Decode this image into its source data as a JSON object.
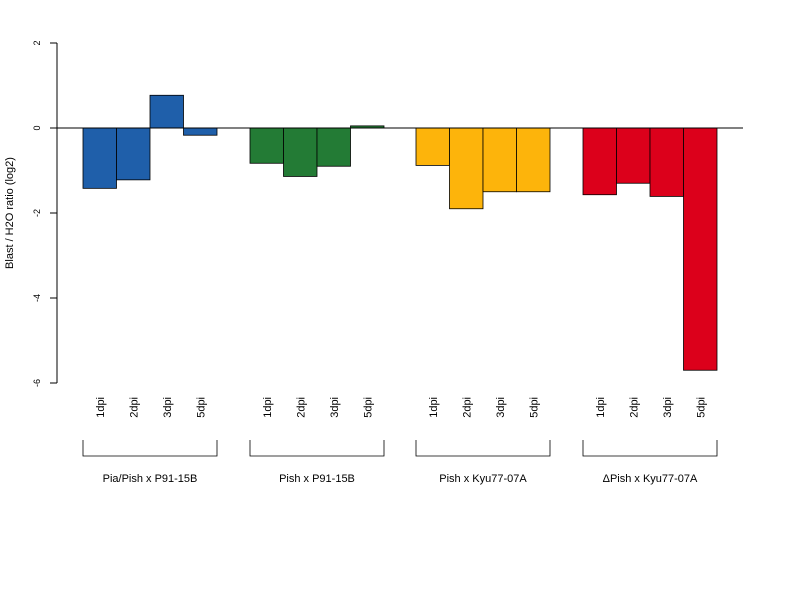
{
  "chart_data": {
    "type": "bar",
    "ylabel": "Blast / H2O ratio (log2)",
    "ylim": [
      -6,
      2
    ],
    "yticks": [
      2,
      0,
      -2,
      -4,
      -6
    ],
    "zero_line": true,
    "categories": [
      "1dpi",
      "2dpi",
      "3dpi",
      "5dpi"
    ],
    "groups": [
      {
        "name": "Pia/Pish x P91-15B",
        "color": "#1f5faa",
        "values": [
          -1.42,
          -1.22,
          0.77,
          -0.17
        ]
      },
      {
        "name": "Pish x P91-15B",
        "color": "#237b35",
        "values": [
          -0.83,
          -1.14,
          -0.9,
          0.05
        ]
      },
      {
        "name": "Pish x Kyu77-07A",
        "color": "#fdb40b",
        "values": [
          -0.88,
          -1.9,
          -1.5,
          -1.5
        ]
      },
      {
        "name": "ΔPish x Kyu77-07A",
        "color": "#dc001b",
        "values": [
          -1.57,
          -1.3,
          -1.61,
          -5.7
        ]
      }
    ]
  }
}
